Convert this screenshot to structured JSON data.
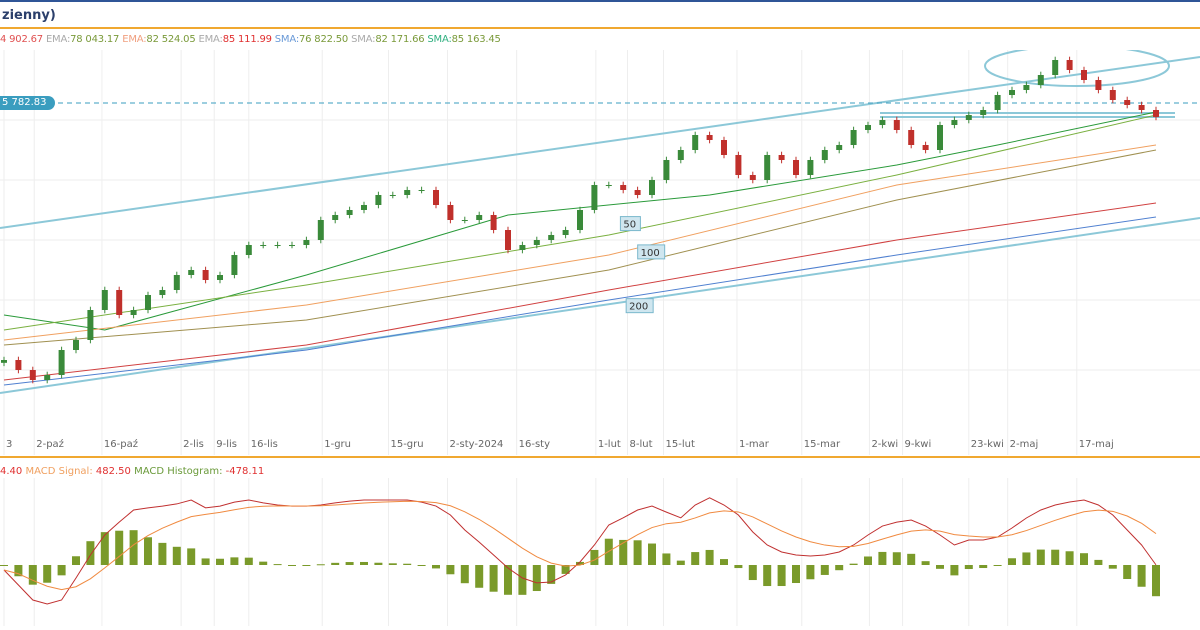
{
  "header": {
    "title": "zienny)"
  },
  "legend": [
    {
      "label": "",
      "value": "4 902.67",
      "color": "#e05050"
    },
    {
      "label": "EMA:",
      "value": "78 043.17",
      "color": "#7a9a3a"
    },
    {
      "label": "EMA:",
      "value": "82 524.05",
      "color": "#7a9a3a",
      "labelColor": "#f0a080"
    },
    {
      "label": "EMA:",
      "value": "85 111.99",
      "color": "#e03030"
    },
    {
      "label": "SMA:",
      "value": "76 822.50",
      "color": "#7a9a3a",
      "labelColor": "#6a9ad8"
    },
    {
      "label": "SMA:",
      "value": "82 171.66",
      "color": "#7a9a3a"
    },
    {
      "label": "SMA:",
      "value": "85 163.45",
      "color": "#7a9a3a",
      "labelColor": "#30b080"
    }
  ],
  "price_tag": "5 782.83",
  "macd_legend": {
    "macd_value": "4.40",
    "signal_label": "MACD Signal:",
    "signal_value": "482.50",
    "hist_label": "MACD Histogram:",
    "hist_value": "-478.11"
  },
  "colors": {
    "up": "#3a8a3a",
    "down": "#c0302b",
    "channel": "#8cc8d8"
  },
  "chart_data": {
    "type": "candlestick",
    "closes": [
      68540,
      67480,
      66420,
      66950,
      69600,
      70660,
      73840,
      75960,
      73310,
      73840,
      75430,
      75960,
      77550,
      78080,
      77020,
      77550,
      79670,
      80730,
      80730,
      80730,
      80730,
      81260,
      83380,
      83910,
      84440,
      84970,
      86030,
      86030,
      86560,
      86560,
      84970,
      83380,
      83380,
      83910,
      82320,
      80200,
      80730,
      81260,
      81790,
      82320,
      84440,
      87090,
      87090,
      86560,
      86030,
      87620,
      89740,
      90800,
      92390,
      91860,
      90270,
      88150,
      87620,
      90270,
      89740,
      88150,
      89740,
      90800,
      91330,
      92920,
      93450,
      93980,
      92920,
      91330,
      90800,
      93450,
      93980,
      94510,
      95040,
      96630,
      97160,
      97690,
      98750,
      100340,
      99280,
      98220,
      97160,
      96100,
      95570,
      95040,
      94300
    ],
    "ma_lines": [
      {
        "name": "SMA 50",
        "color": "#2a9a3a",
        "points": [
          [
            0,
            73310
          ],
          [
            7,
            71720
          ],
          [
            21,
            77550
          ],
          [
            35,
            83910
          ],
          [
            49,
            86030
          ],
          [
            62,
            89210
          ],
          [
            69,
            91330
          ],
          [
            80,
            94830
          ]
        ]
      },
      {
        "name": "EMA 50",
        "color": "#7ab040",
        "points": [
          [
            0,
            71720
          ],
          [
            21,
            76490
          ],
          [
            42,
            81790
          ],
          [
            62,
            88150
          ],
          [
            80,
            94510
          ]
        ]
      },
      {
        "name": "EMA 100",
        "color": "#f0a060",
        "points": [
          [
            0,
            70660
          ],
          [
            21,
            74370
          ],
          [
            42,
            79670
          ],
          [
            62,
            87090
          ],
          [
            80,
            91330
          ]
        ]
      },
      {
        "name": "SMA 100",
        "color": "#a09050",
        "points": [
          [
            0,
            70130
          ],
          [
            21,
            72780
          ],
          [
            42,
            78080
          ],
          [
            62,
            85500
          ],
          [
            80,
            90800
          ]
        ]
      },
      {
        "name": "EMA 200",
        "color": "#d04040",
        "points": [
          [
            0,
            66420
          ],
          [
            21,
            70130
          ],
          [
            42,
            75960
          ],
          [
            62,
            81260
          ],
          [
            80,
            85180
          ]
        ]
      },
      {
        "name": "SMA 200",
        "color": "#5080d0",
        "points": [
          [
            0,
            65890
          ],
          [
            21,
            69600
          ],
          [
            42,
            74900
          ],
          [
            62,
            79670
          ],
          [
            80,
            83700
          ]
        ]
      }
    ],
    "ma_labels": [
      {
        "text": "50",
        "index": 43.5,
        "price": 83000
      },
      {
        "text": "100",
        "index": 44.7,
        "price": 80000
      },
      {
        "text": "200",
        "index": 43.9,
        "price": 74300
      }
    ],
    "x_ticks": [
      {
        "label": "3",
        "index": 0
      },
      {
        "label": "2-paź",
        "index": 2.1
      },
      {
        "label": "16-paź",
        "index": 6.8
      },
      {
        "label": "2-lis",
        "index": 12.3
      },
      {
        "label": "9-lis",
        "index": 14.6
      },
      {
        "label": "16-lis",
        "index": 17
      },
      {
        "label": "1-gru",
        "index": 22.1
      },
      {
        "label": "15-gru",
        "index": 26.7
      },
      {
        "label": "2-sty-2024",
        "index": 30.8
      },
      {
        "label": "16-sty",
        "index": 35.6
      },
      {
        "label": "1-lut",
        "index": 41.1
      },
      {
        "label": "8-lut",
        "index": 43.3
      },
      {
        "label": "15-lut",
        "index": 45.8
      },
      {
        "label": "1-mar",
        "index": 50.9
      },
      {
        "label": "15-mar",
        "index": 55.4
      },
      {
        "label": "2-kwi",
        "index": 60.1
      },
      {
        "label": "9-kwi",
        "index": 62.4
      },
      {
        "label": "23-kwi",
        "index": 67
      },
      {
        "label": "2-maj",
        "index": 69.7
      },
      {
        "label": "17-maj",
        "index": 74.5
      }
    ],
    "current_price": 95782.83,
    "macd": [
      -140,
      -560,
      -980,
      -1090,
      -980,
      -364,
      280,
      840,
      1200,
      1540,
      1600,
      1650,
      1710,
      1820,
      1600,
      1650,
      1760,
      1820,
      1740,
      1680,
      1650,
      1650,
      1680,
      1740,
      1790,
      1820,
      1820,
      1820,
      1820,
      1760,
      1650,
      1400,
      980,
      640,
      280,
      -84,
      -364,
      -500,
      -476,
      -280,
      84,
      560,
      1120,
      1320,
      1540,
      1650,
      1480,
      1320,
      1680,
      1880,
      1680,
      1400,
      924,
      560,
      364,
      280,
      252,
      280,
      364,
      560,
      840,
      1090,
      1200,
      1260,
      1090,
      840,
      560,
      700,
      700,
      784,
      1036,
      1316,
      1540,
      1680,
      1764,
      1820,
      1680,
      1400,
      980,
      560,
      4
    ]
  }
}
